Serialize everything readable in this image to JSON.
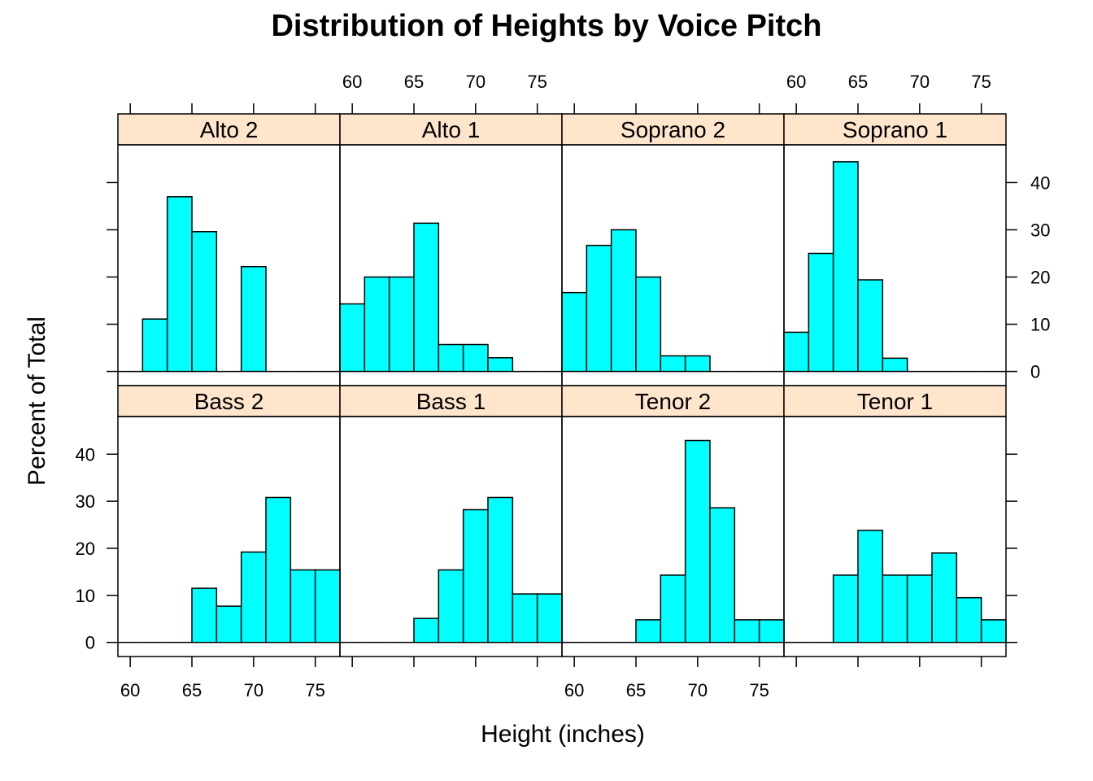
{
  "chart_data": {
    "type": "bar",
    "title": "Distribution of Heights by Voice Pitch",
    "xlabel": "Height (inches)",
    "ylabel": "Percent of Total",
    "xlim": [
      59,
      77
    ],
    "ylim": [
      -3,
      48
    ],
    "xticks": [
      60,
      65,
      70,
      75
    ],
    "yticks": [
      0,
      10,
      20,
      30,
      40
    ],
    "bin_edges": [
      59,
      61,
      63,
      65,
      67,
      69,
      71,
      73,
      75,
      77
    ],
    "bar_color": "#00ffff",
    "strip_color": "#ffe5cc",
    "layout": "4 columns x 2 rows",
    "panels": [
      {
        "name": "Alto 2",
        "values": [
          0,
          11.1,
          37.0,
          29.6,
          0,
          22.2,
          0,
          0,
          0
        ]
      },
      {
        "name": "Alto 1",
        "values": [
          14.3,
          20.0,
          20.0,
          31.4,
          5.7,
          5.7,
          2.9,
          0,
          0
        ]
      },
      {
        "name": "Soprano 2",
        "values": [
          16.7,
          26.7,
          30.0,
          20.0,
          3.3,
          3.3,
          0,
          0,
          0
        ]
      },
      {
        "name": "Soprano 1",
        "values": [
          8.3,
          25.0,
          44.4,
          19.4,
          2.8,
          0,
          0,
          0,
          0
        ]
      },
      {
        "name": "Bass 2",
        "values": [
          0,
          0,
          0,
          11.5,
          7.7,
          19.2,
          30.8,
          15.4,
          15.4
        ]
      },
      {
        "name": "Bass 1",
        "values": [
          0,
          0,
          0,
          5.1,
          15.4,
          28.2,
          30.8,
          10.3,
          10.3
        ]
      },
      {
        "name": "Tenor 2",
        "values": [
          0,
          0,
          0,
          4.8,
          14.3,
          42.9,
          28.6,
          4.8,
          4.8
        ]
      },
      {
        "name": "Tenor 1",
        "values": [
          0,
          0,
          14.3,
          23.8,
          14.3,
          14.3,
          19.0,
          9.5,
          4.8
        ]
      }
    ]
  }
}
